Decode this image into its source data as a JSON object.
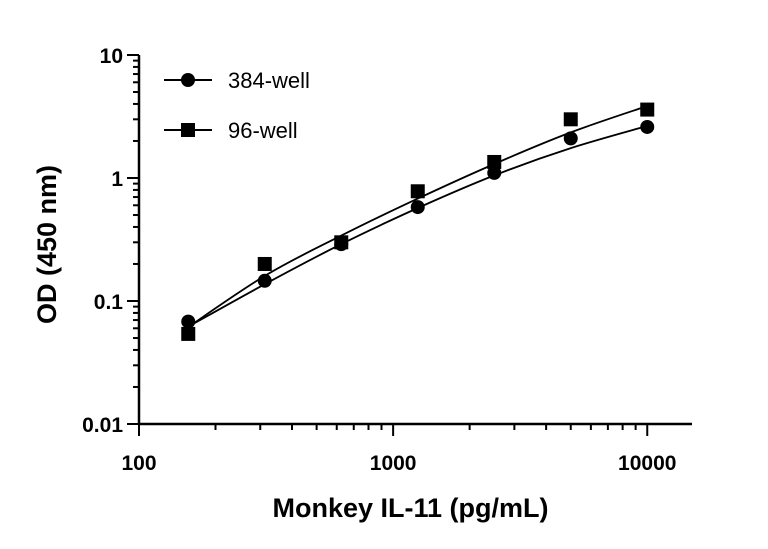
{
  "chart_data": {
    "type": "scatter",
    "title": "",
    "xlabel": "Monkey IL-11 (pg/mL)",
    "ylabel": "OD (450 nm)",
    "xscale": "log",
    "yscale": "log",
    "xlim": [
      100,
      15000
    ],
    "ylim": [
      0.01,
      10
    ],
    "x_ticks": [
      {
        "value": 100,
        "label": "100"
      },
      {
        "value": 1000,
        "label": "1000"
      },
      {
        "value": 10000,
        "label": "10000"
      }
    ],
    "y_ticks": [
      {
        "value": 0.01,
        "label": "0.01"
      },
      {
        "value": 0.1,
        "label": "0.1"
      },
      {
        "value": 1,
        "label": "1"
      },
      {
        "value": 10,
        "label": "10"
      }
    ],
    "grid": false,
    "legend_position": "top-left",
    "series": [
      {
        "name": "384-well",
        "marker": "circle",
        "color": "#000000",
        "x": [
          156.25,
          312.5,
          625,
          1250,
          2500,
          5000,
          10000
        ],
        "y": [
          0.068,
          0.146,
          0.29,
          0.58,
          1.1,
          2.1,
          2.6
        ],
        "fit": [
          [
            150,
            0.059
          ],
          [
            312.5,
            0.137
          ],
          [
            625,
            0.29
          ],
          [
            1250,
            0.57
          ],
          [
            2500,
            1.05
          ],
          [
            5000,
            1.75
          ],
          [
            10000,
            2.65
          ]
        ]
      },
      {
        "name": "96-well",
        "marker": "square",
        "color": "#000000",
        "x": [
          156.25,
          312.5,
          625,
          1250,
          2500,
          5000,
          10000
        ],
        "y": [
          0.054,
          0.2,
          0.3,
          0.78,
          1.35,
          3.0,
          3.6
        ],
        "fit": [
          [
            150,
            0.058
          ],
          [
            312.5,
            0.16
          ],
          [
            625,
            0.34
          ],
          [
            1250,
            0.68
          ],
          [
            2500,
            1.3
          ],
          [
            5000,
            2.35
          ],
          [
            10000,
            3.85
          ]
        ]
      }
    ]
  }
}
